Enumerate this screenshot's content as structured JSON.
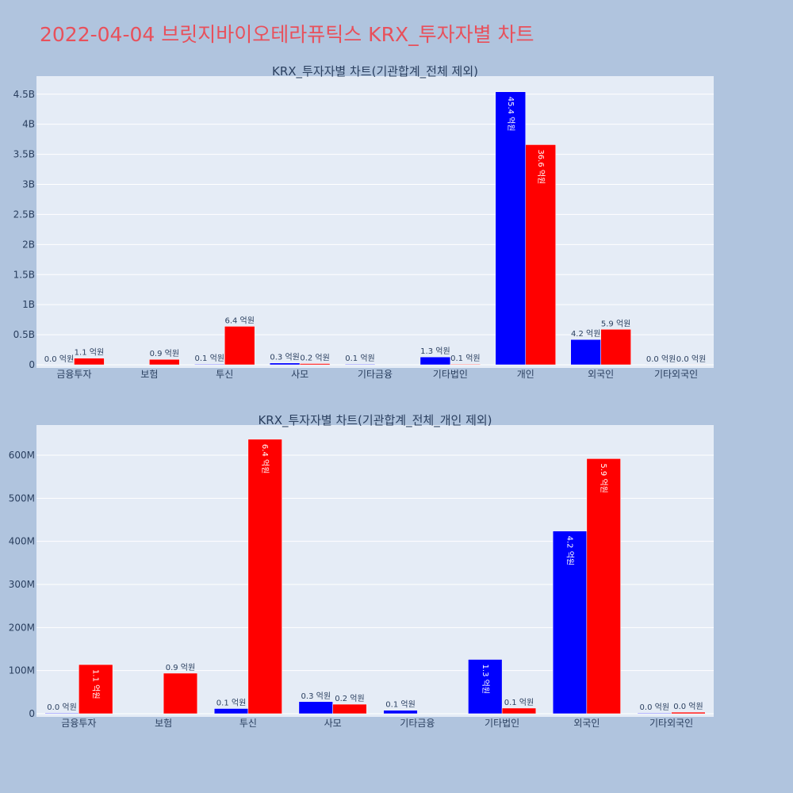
{
  "page_title": "2022-04-04 브릿지바이오테라퓨틱스 KRX_투자자별 차트",
  "colors": {
    "buy": "#0000ff",
    "sell": "#ff0000",
    "plot_bg": "#e5ecf6",
    "paper_bg": "#b0c4de",
    "title": "#e8505b"
  },
  "chart_data": [
    {
      "type": "bar",
      "title": "KRX_투자자별 차트(기관합계_전체 제외)",
      "categories": [
        "금융투자",
        "보험",
        "투신",
        "사모",
        "기타금융",
        "기타법인",
        "개인",
        "외국인",
        "기타외국인"
      ],
      "ylim": [
        0,
        4800000000
      ],
      "yticks": [
        0,
        500000000,
        1000000000,
        1500000000,
        2000000000,
        2500000000,
        3000000000,
        3500000000,
        4000000000,
        4500000000
      ],
      "ytick_labels": [
        "0",
        "0.5B",
        "1B",
        "1.5B",
        "2B",
        "2.5B",
        "3B",
        "3.5B",
        "4B",
        "4.5B"
      ],
      "grid": true,
      "series": [
        {
          "color": "#0000ff",
          "values": [
            2000000,
            0,
            10000000,
            30000000,
            10000000,
            130000000,
            4540000000,
            420000000,
            2000000
          ],
          "labels": [
            "0.0 억원",
            "",
            "0.1 억원",
            "0.3 억원",
            "0.1 억원",
            "1.3 억원",
            "45.4 억원",
            "4.2 억원",
            "0.0 억원"
          ]
        },
        {
          "color": "#ff0000",
          "values": [
            110000000,
            90000000,
            640000000,
            20000000,
            0,
            10000000,
            3660000000,
            590000000,
            2000000
          ],
          "labels": [
            "1.1 억원",
            "0.9 억원",
            "6.4 억원",
            "0.2 억원",
            "",
            "0.1 억원",
            "36.6 억원",
            "5.9 억원",
            "0.0 억원"
          ]
        }
      ]
    },
    {
      "type": "bar",
      "title": "KRX_투자자별 차트(기관합계_전체_개인 제외)",
      "categories": [
        "금융투자",
        "보험",
        "투신",
        "사모",
        "기타금융",
        "기타법인",
        "외국인",
        "기타외국인"
      ],
      "ylim": [
        0,
        670000000
      ],
      "yticks": [
        0,
        100000000,
        200000000,
        300000000,
        400000000,
        500000000,
        600000000
      ],
      "ytick_labels": [
        "0",
        "100M",
        "200M",
        "300M",
        "400M",
        "500M",
        "600M"
      ],
      "grid": true,
      "series": [
        {
          "color": "#0000ff",
          "values": [
            1500000,
            0,
            12000000,
            28000000,
            8000000,
            126000000,
            424000000,
            1500000
          ],
          "labels": [
            "0.0 억원",
            "",
            "0.1 억원",
            "0.3 억원",
            "0.1 억원",
            "1.3 억원",
            "4.2 억원",
            "0.0 억원"
          ]
        },
        {
          "color": "#ff0000",
          "values": [
            114000000,
            94000000,
            637000000,
            22000000,
            0,
            13000000,
            592000000,
            3500000
          ],
          "labels": [
            "1.1 억원",
            "0.9 억원",
            "6.4 억원",
            "0.2 억원",
            "",
            "0.1 억원",
            "5.9 억원",
            "0.0 억원"
          ]
        }
      ]
    }
  ]
}
